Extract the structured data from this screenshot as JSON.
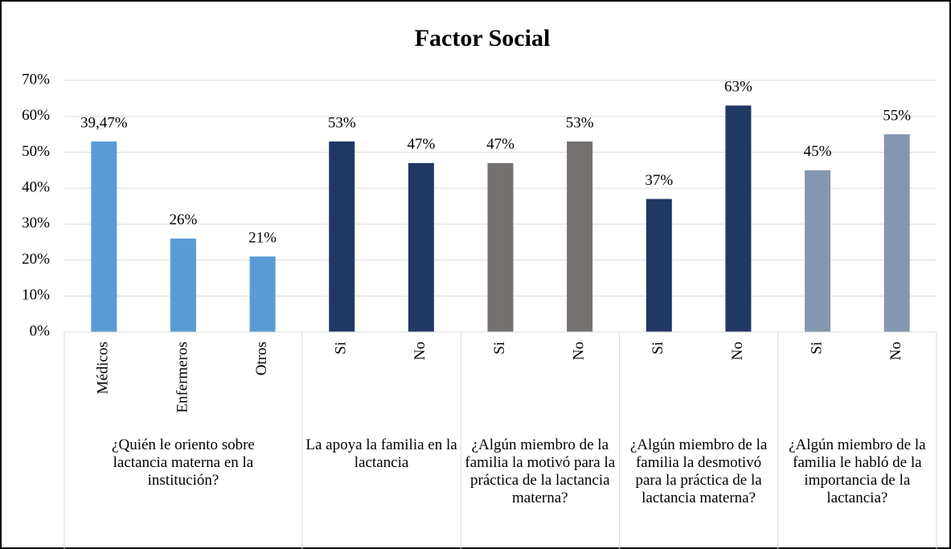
{
  "chart_data": {
    "type": "bar",
    "title": "Factor Social",
    "ylim": [
      0,
      70
    ],
    "yticks": [
      {
        "value": 0,
        "label": "0%"
      },
      {
        "value": 10,
        "label": "10%"
      },
      {
        "value": 20,
        "label": "20%"
      },
      {
        "value": 30,
        "label": "30%"
      },
      {
        "value": 40,
        "label": "40%"
      },
      {
        "value": 50,
        "label": "50%"
      },
      {
        "value": 60,
        "label": "60%"
      },
      {
        "value": 70,
        "label": "70%"
      }
    ],
    "grid": true,
    "annotations": [
      "39,47%"
    ],
    "groups": [
      {
        "label": "¿Quién le oriento sobre lactancia materna en la institución?",
        "color": "#5b9bd5",
        "categories": [
          "Médicos",
          "Enfermeros",
          "Otros"
        ],
        "values": [
          53,
          26,
          21
        ],
        "value_labels": [
          null,
          "26%",
          "21%"
        ]
      },
      {
        "label": "La apoya la familia en la lactancia",
        "color": "#203864",
        "categories": [
          "Si",
          "No"
        ],
        "values": [
          53,
          47
        ],
        "value_labels": [
          "53%",
          "47%"
        ]
      },
      {
        "label": "¿Algún miembro de la familia la motivó para la práctica de la lactancia materna?",
        "color": "#767171",
        "categories": [
          "Si",
          "No"
        ],
        "values": [
          47,
          53
        ],
        "value_labels": [
          "47%",
          "53%"
        ]
      },
      {
        "label": "¿Algún miembro de la familia la desmotivó para la práctica de la lactancia materna?",
        "color": "#203864",
        "categories": [
          "Si",
          "No"
        ],
        "values": [
          37,
          63
        ],
        "value_labels": [
          "37%",
          "63%"
        ]
      },
      {
        "label": "¿Algún miembro de la familia le habló de la importancia de la lactancia?",
        "color": "#8497b0",
        "categories": [
          "Si",
          "No"
        ],
        "values": [
          45,
          55
        ],
        "value_labels": [
          "45%",
          "55%"
        ]
      }
    ]
  }
}
